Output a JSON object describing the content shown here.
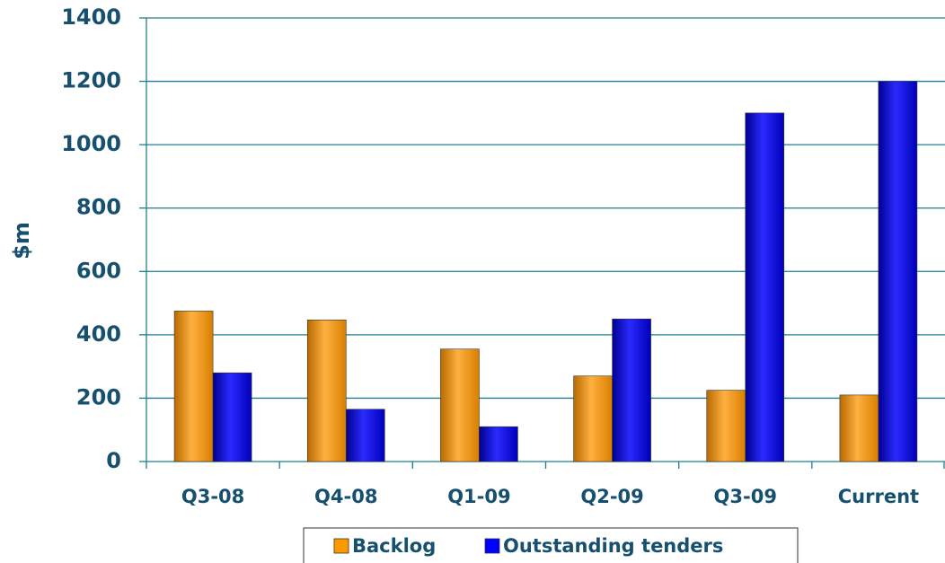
{
  "chart_data": {
    "type": "bar",
    "categories": [
      "Q3-08",
      "Q4-08",
      "Q1-09",
      "Q2-09",
      "Q3-09",
      "Current"
    ],
    "series": [
      {
        "name": "Backlog",
        "color": "#ff9900",
        "values": [
          475,
          447,
          355,
          270,
          225,
          210
        ]
      },
      {
        "name": "Outstanding tenders",
        "color": "#0000ff",
        "values": [
          280,
          165,
          110,
          450,
          1100,
          1200
        ]
      }
    ],
    "y_label": "$m",
    "ylim": [
      0,
      1400
    ],
    "yticks": [
      0,
      200,
      400,
      600,
      800,
      1000,
      1200,
      1400
    ],
    "grid": true,
    "legend": "bottom"
  }
}
